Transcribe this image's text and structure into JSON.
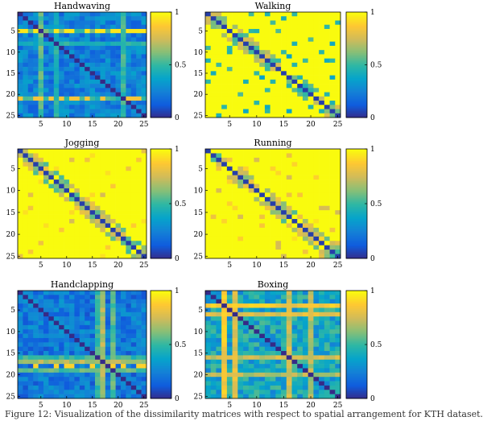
{
  "caption": "Figure 12: Visualization of the dissimilarity matrices with respect to spatial arrangement for KTH dataset.",
  "colorscale": [
    "#352a87",
    "#0f5cdd",
    "#1481d6",
    "#06a4ca",
    "#2eb7a4",
    "#87bf77",
    "#d1bb59",
    "#fec832",
    "#f9fb0e"
  ],
  "chart_data": [
    {
      "type": "heatmap",
      "title": "Handwaving",
      "size": 25,
      "xticks": [
        5,
        10,
        15,
        20,
        25
      ],
      "yticks": [
        5,
        10,
        15,
        20,
        25
      ],
      "colorbar": {
        "min": 0,
        "max": 1,
        "ticks": [
          0,
          0.5,
          1
        ]
      },
      "base": 0.25,
      "variation": 0.12,
      "cross": [
        {
          "index": 5,
          "value": 0.55
        },
        {
          "index": 8,
          "value": 0.45
        },
        {
          "index": 21,
          "value": 0.5
        }
      ],
      "highlights": [
        {
          "row": 5,
          "value": 0.95
        },
        {
          "row": 21,
          "value": 0.85
        }
      ],
      "diagonal": 0.0
    },
    {
      "type": "heatmap",
      "title": "Walking",
      "size": 25,
      "xticks": [
        5,
        10,
        15,
        20,
        25
      ],
      "yticks": [
        5,
        10,
        15,
        20,
        25
      ],
      "colorbar": {
        "min": 0,
        "max": 1,
        "ticks": [
          0,
          0.5,
          1
        ]
      },
      "base": 1.0,
      "variation": 0.0,
      "nearband": 0.45,
      "scatter": 0.35,
      "diagonal": 0.05
    },
    {
      "type": "heatmap",
      "title": "Jogging",
      "size": 25,
      "xticks": [
        5,
        10,
        15,
        20,
        25
      ],
      "yticks": [
        5,
        10,
        15,
        20,
        25
      ],
      "colorbar": {
        "min": 0,
        "max": 1,
        "ticks": [
          0,
          0.5,
          1
        ]
      },
      "base": 1.0,
      "variation": 0.0,
      "nearband": 0.5,
      "scatter": 0.75,
      "diagonal": 0.05
    },
    {
      "type": "heatmap",
      "title": "Running",
      "size": 25,
      "xticks": [
        5,
        10,
        15,
        20,
        25
      ],
      "yticks": [
        5,
        10,
        15,
        20,
        25
      ],
      "colorbar": {
        "min": 0,
        "max": 1,
        "ticks": [
          0,
          0.5,
          1
        ]
      },
      "base": 1.0,
      "variation": 0.0,
      "nearband": 0.5,
      "scatter": 0.75,
      "diagonal": 0.05
    },
    {
      "type": "heatmap",
      "title": "Handclapping",
      "size": 25,
      "xticks": [
        5,
        10,
        15,
        20,
        25
      ],
      "yticks": [
        5,
        10,
        15,
        20,
        25
      ],
      "colorbar": {
        "min": 0,
        "max": 1,
        "ticks": [
          0,
          0.5,
          1
        ]
      },
      "base": 0.22,
      "variation": 0.12,
      "cross": [
        {
          "index": 17,
          "value": 0.7
        },
        {
          "index": 19,
          "value": 0.55
        },
        {
          "index": 16,
          "value": 0.5
        }
      ],
      "highlights": [
        {
          "row": 18,
          "value": 0.9
        }
      ],
      "diagonal": 0.0
    },
    {
      "type": "heatmap",
      "title": "Boxing",
      "size": 25,
      "xticks": [
        5,
        10,
        15,
        20,
        25
      ],
      "yticks": [
        5,
        10,
        15,
        20,
        25
      ],
      "colorbar": {
        "min": 0,
        "max": 1,
        "ticks": [
          0,
          0.5,
          1
        ]
      },
      "base": 0.4,
      "variation": 0.15,
      "cross": [
        {
          "index": 4,
          "value": 0.85
        },
        {
          "index": 6,
          "value": 0.8
        },
        {
          "index": 16,
          "value": 0.75
        },
        {
          "index": 20,
          "value": 0.7
        }
      ],
      "diagonal": 0.0
    }
  ]
}
